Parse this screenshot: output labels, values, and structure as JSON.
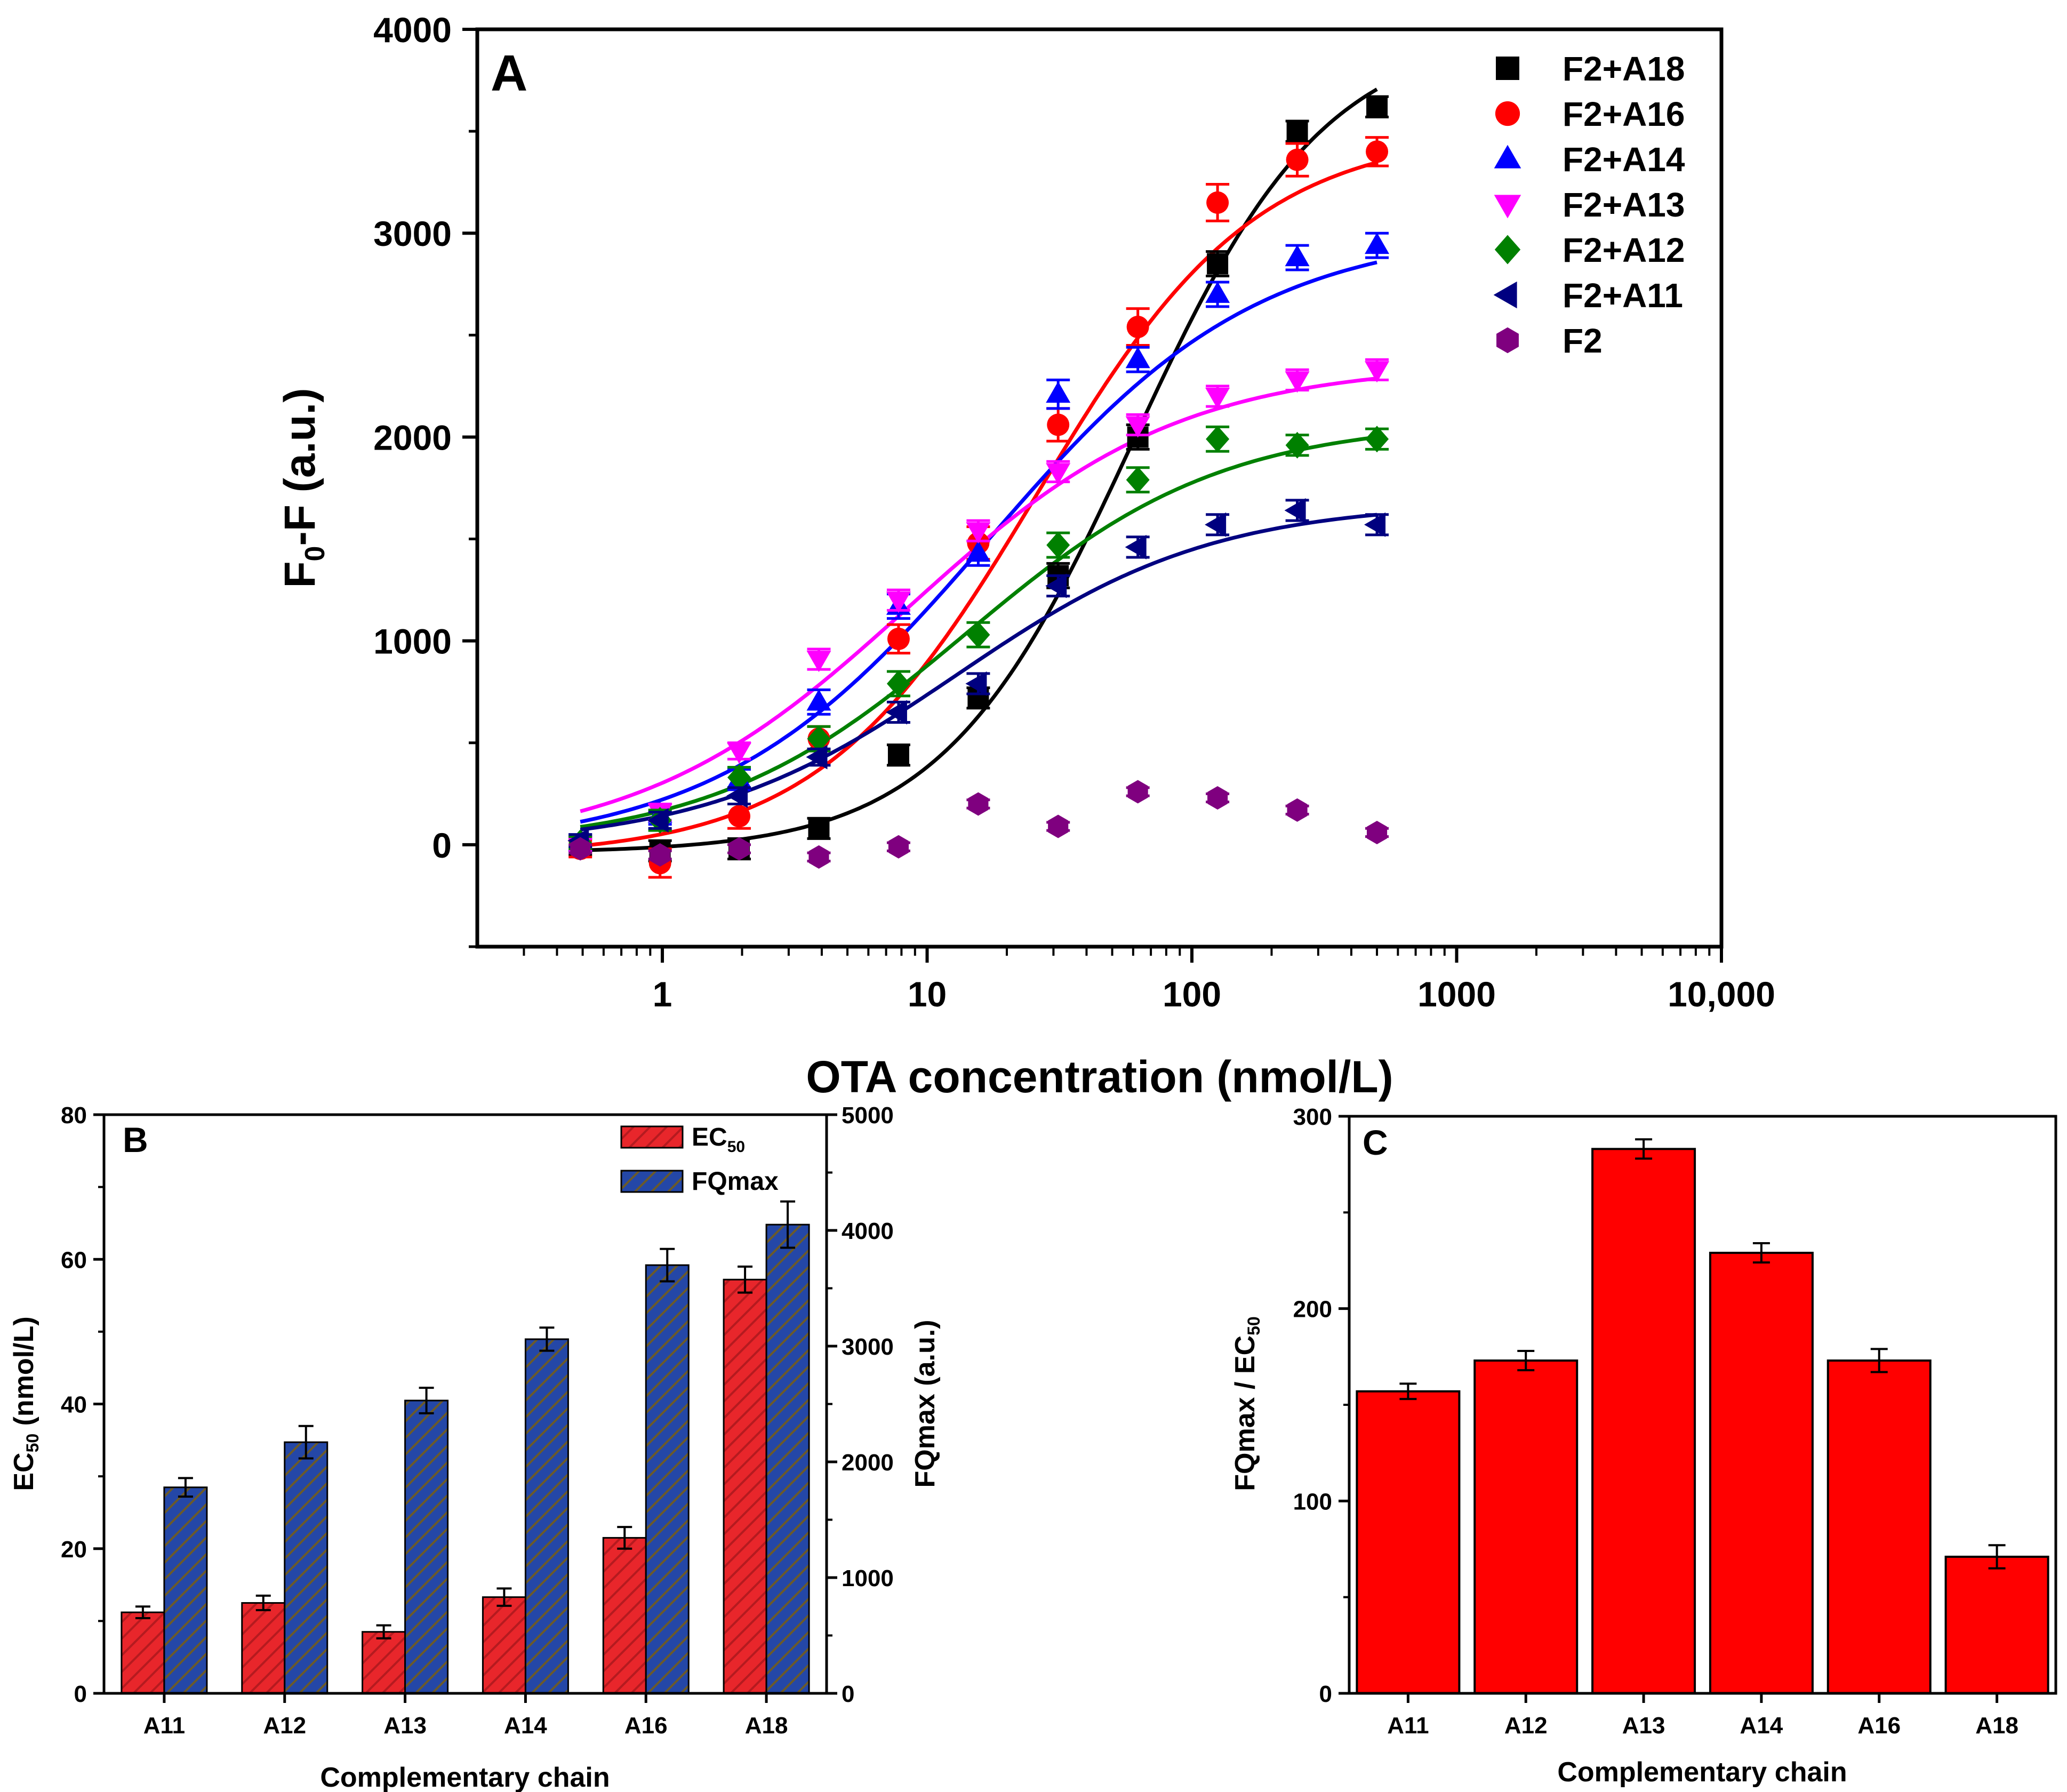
{
  "chart_data": [
    {
      "panel": "A",
      "type": "scatter",
      "title": "",
      "xlabel": "OTA concentration (nmol/L)",
      "ylabel_main": "F",
      "ylabel_sub": "0",
      "ylabel_rest": "-F (a.u.)",
      "xscale": "log",
      "xlim": [
        0.2,
        10000
      ],
      "ylim": [
        -500,
        4000
      ],
      "xticks": [
        1,
        10,
        100,
        1000,
        10000
      ],
      "xtick_labels": [
        "1",
        "10",
        "100",
        "1000",
        "10,000"
      ],
      "yticks": [
        0,
        1000,
        2000,
        3000,
        4000
      ],
      "ytick_labels": [
        "0",
        "1000",
        "2000",
        "3000",
        "4000"
      ],
      "legend_position": "top-right",
      "x": [
        0.49,
        0.98,
        1.95,
        3.9,
        7.8,
        15.6,
        31.25,
        62.5,
        125,
        250,
        500
      ],
      "series": [
        {
          "name": "F2+A18",
          "color": "#000000",
          "marker": "square",
          "fit": true,
          "values": [
            -10,
            -30,
            -20,
            80,
            440,
            720,
            1320,
            2000,
            2850,
            3500,
            3620
          ],
          "errors": [
            40,
            50,
            50,
            50,
            50,
            50,
            60,
            60,
            60,
            50,
            50
          ]
        },
        {
          "name": "F2+A16",
          "color": "#ff0000",
          "marker": "circle",
          "fit": true,
          "values": [
            -20,
            -90,
            140,
            520,
            1010,
            1480,
            2060,
            2540,
            3150,
            3360,
            3400
          ],
          "errors": [
            40,
            70,
            60,
            60,
            70,
            80,
            80,
            90,
            90,
            80,
            70
          ]
        },
        {
          "name": "F2+A14",
          "color": "#0000ff",
          "marker": "triangle-up",
          "fit": true,
          "values": [
            10,
            150,
            320,
            700,
            1170,
            1430,
            2210,
            2380,
            2700,
            2880,
            2940
          ],
          "errors": [
            40,
            50,
            50,
            60,
            60,
            60,
            70,
            60,
            60,
            60,
            60
          ]
        },
        {
          "name": "F2+A13",
          "color": "#ff00ff",
          "marker": "triangle-down",
          "fit": true,
          "values": [
            0,
            160,
            460,
            910,
            1200,
            1540,
            1830,
            2060,
            2200,
            2280,
            2330
          ],
          "errors": [
            30,
            40,
            40,
            50,
            50,
            50,
            50,
            50,
            50,
            50,
            50
          ]
        },
        {
          "name": "F2+A12",
          "color": "#008000",
          "marker": "diamond",
          "fit": true,
          "values": [
            10,
            120,
            330,
            520,
            790,
            1030,
            1470,
            1790,
            1990,
            1960,
            1990
          ],
          "errors": [
            30,
            50,
            50,
            60,
            60,
            60,
            60,
            60,
            60,
            50,
            50
          ]
        },
        {
          "name": "F2+A11",
          "color": "#000080",
          "marker": "triangle-left",
          "fit": true,
          "values": [
            20,
            120,
            240,
            430,
            650,
            790,
            1270,
            1460,
            1570,
            1640,
            1570
          ],
          "errors": [
            30,
            40,
            40,
            40,
            50,
            50,
            50,
            50,
            50,
            50,
            50
          ]
        },
        {
          "name": "F2",
          "color": "#7f007f",
          "marker": "hexagon",
          "fit": false,
          "values": [
            -20,
            -50,
            -20,
            -60,
            -10,
            200,
            90,
            260,
            230,
            170,
            60
          ],
          "errors": [
            20,
            20,
            20,
            20,
            20,
            20,
            20,
            20,
            20,
            20,
            20
          ]
        }
      ]
    },
    {
      "panel": "B",
      "type": "bar",
      "title": "",
      "xlabel": "Complementary chain",
      "ylabel_left_main": "EC",
      "ylabel_left_sub": "50",
      "ylabel_left_rest": " (nmol/L)",
      "ylabel_right": "FQmax (a.u.)",
      "categories": [
        "A11",
        "A12",
        "A13",
        "A14",
        "A16",
        "A18"
      ],
      "ylim_left": [
        0,
        80
      ],
      "yticks_left": [
        0,
        20,
        40,
        60,
        80
      ],
      "ylim_right": [
        0,
        5000
      ],
      "yticks_right": [
        0,
        1000,
        2000,
        3000,
        4000,
        5000
      ],
      "legend_position": "top-right",
      "series": [
        {
          "name": "EC",
          "name_sub": "50",
          "axis": "left",
          "color": "#e8262b",
          "hatch": "#b51a1f",
          "values": [
            11.2,
            12.5,
            8.5,
            13.3,
            21.5,
            57.2
          ],
          "errors": [
            0.8,
            1.0,
            0.9,
            1.2,
            1.5,
            1.8
          ]
        },
        {
          "name": "FQmax",
          "name_sub": "",
          "axis": "right",
          "color": "#2447a7",
          "hatch": "#6b5a2a",
          "values": [
            1780,
            2170,
            2530,
            3060,
            3700,
            4050
          ],
          "errors": [
            80,
            140,
            110,
            100,
            140,
            200
          ]
        }
      ]
    },
    {
      "panel": "C",
      "type": "bar",
      "title": "",
      "xlabel": "Complementary chain",
      "ylabel_main": "FQmax / EC",
      "ylabel_sub": "50",
      "categories": [
        "A11",
        "A12",
        "A13",
        "A14",
        "A16",
        "A18"
      ],
      "ylim": [
        0,
        300
      ],
      "yticks": [
        0,
        100,
        200,
        300
      ],
      "color": "#ff0000",
      "values": [
        157,
        173,
        283,
        229,
        173,
        71
      ],
      "errors": [
        4,
        5,
        5,
        5,
        6,
        6
      ]
    }
  ]
}
